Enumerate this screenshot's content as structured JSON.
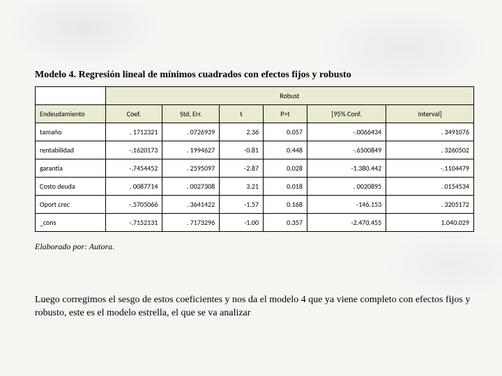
{
  "page": {
    "title": "Modelo 4. Regresión lineal de mínimos cuadrados con efectos fijos y robusto",
    "caption": "Elaborado por: Autora.",
    "body": "Luego corregimos el sesgo de estos coeficientes y nos da el modelo 4 que ya viene completo con efectos fijos y robusto, este es el modelo estrella, el que se va analizar"
  },
  "table": {
    "robust_label": "Robust",
    "row_header_label": "Endeudamiento",
    "columns": [
      "Coef.",
      "Std. Err.",
      "t",
      "P>t",
      "[95% Conf.",
      "Interval]"
    ],
    "rows": [
      {
        "label": "tamaño",
        "cells": [
          ". 1712321",
          ". 0726939",
          "2.36",
          "0.057",
          "-.0066434",
          ". 3491076"
        ]
      },
      {
        "label": "rentabilidad",
        "cells": [
          "-.1620173",
          ". 1994627",
          "-0.81",
          "0.448",
          "-.6500849",
          ". 3260502"
        ]
      },
      {
        "label": "garantía",
        "cells": [
          "-.7454452",
          ". 2595097",
          "-2.87",
          "0.028",
          "-1.380.442",
          "-.1104479"
        ]
      },
      {
        "label": "Costo deuda",
        "cells": [
          ". 0087714",
          ". 0027308",
          "3.21",
          "0.018",
          ". 0020895",
          ". 0154534"
        ]
      },
      {
        "label": "Oport crec",
        "cells": [
          "-.5705066",
          ". 3641422",
          "-1.57",
          "0.168",
          "-146.153",
          ". 3205172"
        ]
      },
      {
        "label": "_cons",
        "cells": [
          "-.7152131",
          ". 7173296",
          "-1.00",
          "0.357",
          "-2.470.455",
          "1.040.029"
        ]
      }
    ],
    "style": {
      "header_bg": "#ebebd2",
      "border_color": "#000000",
      "font_size": 10,
      "row_bg": "#ffffff"
    }
  }
}
